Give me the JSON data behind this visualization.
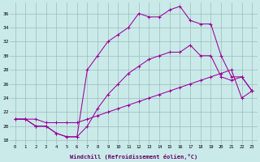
{
  "xlabel": "Windchill (Refroidissement éolien,°C)",
  "background_color": "#caeaea",
  "grid_color": "#a0b8b8",
  "line_color": "#990099",
  "xlim_min": -0.5,
  "xlim_max": 23.5,
  "ylim_min": 17.5,
  "ylim_max": 37.5,
  "xticks": [
    0,
    1,
    2,
    3,
    4,
    5,
    6,
    7,
    8,
    9,
    10,
    11,
    12,
    13,
    14,
    15,
    16,
    17,
    18,
    19,
    20,
    21,
    22,
    23
  ],
  "yticks": [
    18,
    20,
    22,
    24,
    26,
    28,
    30,
    32,
    34,
    36
  ],
  "line1_x": [
    0,
    1,
    2,
    3,
    4,
    5,
    6,
    7,
    8,
    9,
    10,
    11,
    12,
    13,
    14,
    15,
    16,
    17,
    18,
    19,
    20,
    21,
    22,
    23
  ],
  "line1_y": [
    21.0,
    21.0,
    21.0,
    20.5,
    20.5,
    20.5,
    20.5,
    21.0,
    21.5,
    22.0,
    22.5,
    23.0,
    23.5,
    24.0,
    24.5,
    25.0,
    25.5,
    26.0,
    26.5,
    27.0,
    27.5,
    28.0,
    24.0,
    25.0
  ],
  "line2_x": [
    0,
    1,
    2,
    3,
    4,
    5,
    6,
    7,
    8,
    9,
    10,
    11,
    12,
    13,
    14,
    15,
    16,
    17,
    18,
    19,
    20,
    21,
    22,
    23
  ],
  "line2_y": [
    21.0,
    21.0,
    20.0,
    20.0,
    19.0,
    18.5,
    18.5,
    28.0,
    30.0,
    32.0,
    33.0,
    34.0,
    36.0,
    35.5,
    35.5,
    36.5,
    37.0,
    35.0,
    34.5,
    34.5,
    30.0,
    27.0,
    27.0,
    25.0
  ],
  "line3_x": [
    0,
    1,
    2,
    3,
    4,
    5,
    6,
    7,
    8,
    9,
    10,
    11,
    12,
    13,
    14,
    15,
    16,
    17,
    18,
    19,
    20,
    21,
    22,
    23
  ],
  "line3_y": [
    21.0,
    21.0,
    20.0,
    20.0,
    19.0,
    18.5,
    18.5,
    20.0,
    22.5,
    24.5,
    26.0,
    27.5,
    28.5,
    29.5,
    30.0,
    30.5,
    30.5,
    31.5,
    30.0,
    30.0,
    27.0,
    26.5,
    27.0,
    25.0
  ]
}
